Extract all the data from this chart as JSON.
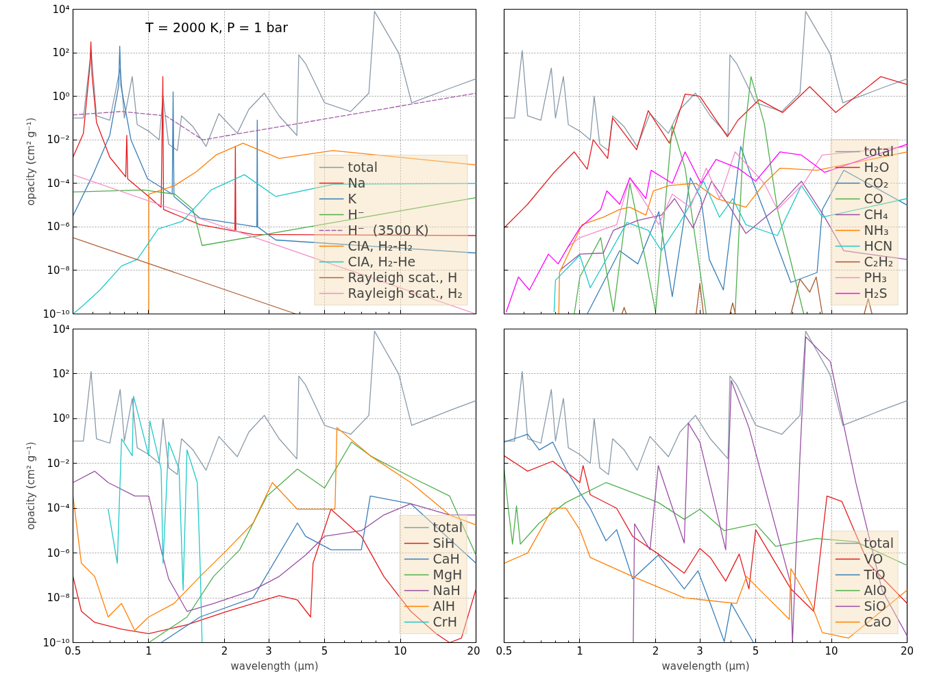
{
  "chart_data": [
    {
      "type": "line",
      "log": "xy",
      "grid": true,
      "legend": "bottom right",
      "tick_labels": "y",
      "ylabel": "opacity (cm² g⁻¹)",
      "annotations": [
        "T = 2000 K, P = 1 bar"
      ],
      "xlim": [
        0.5,
        20
      ],
      "ylim": [
        1e-10,
        10000
      ],
      "xticks": [
        {
          "value": 0.5,
          "label": null
        },
        {
          "value": 1,
          "label": null
        },
        {
          "value": 2,
          "label": null
        },
        {
          "value": 3,
          "label": null
        },
        {
          "value": 5,
          "label": null
        },
        {
          "value": 10,
          "label": null
        },
        {
          "value": 20,
          "label": null
        }
      ],
      "yticks": [
        {
          "value": 1e-10,
          "label": "10⁻¹⁰"
        },
        {
          "value": 1e-08,
          "label": "10⁻⁸"
        },
        {
          "value": 1e-06,
          "label": "10⁻⁶"
        },
        {
          "value": 0.0001,
          "label": "10⁻⁴"
        },
        {
          "value": 0.01,
          "label": "10⁻²"
        },
        {
          "value": 1,
          "label": "10⁰"
        },
        {
          "value": 100,
          "label": "10²"
        },
        {
          "value": 10000,
          "label": "10⁴"
        }
      ],
      "series": [
        {
          "name": "total",
          "color": "#8899a8",
          "x": [
            0.5,
            0.55,
            0.59,
            0.62,
            0.7,
            0.77,
            0.8,
            0.86,
            0.9,
            1.0,
            1.1,
            1.14,
            1.2,
            1.3,
            1.35,
            1.5,
            1.69,
            1.9,
            2.25,
            2.5,
            2.88,
            3.3,
            3.88,
            3.95,
            4.2,
            4.5,
            5.0,
            6.35,
            7.5,
            7.9,
            9.85,
            11.1,
            13,
            16,
            20
          ],
          "values": [
            0.1,
            0.1,
            126.0,
            0.126,
            0.08,
            20,
            0.1,
            8,
            0.05,
            0.025,
            0.01,
            1,
            0.0063,
            0.0032,
            0.126,
            0.04,
            0.005,
            0.16,
            0.02,
            0.25,
            1.4,
            0.126,
            0.016,
            80,
            32,
            6.3,
            0.5,
            0.2,
            1.4,
            8000.0,
            100,
            0.5,
            1,
            2.5,
            6.3
          ]
        },
        {
          "name": "Na",
          "color": "#e41a1c",
          "x": [
            0.5,
            0.55,
            0.585,
            0.589,
            0.595,
            0.62,
            0.7,
            0.81,
            0.818,
            0.825,
            1.0,
            1.12,
            1.138,
            1.145,
            1.6,
            2.2,
            2.21,
            2.22,
            2.6,
            20
          ],
          "values": [
            0.0016,
            0.02,
            32,
            316,
            10,
            0.063,
            0.0016,
            0.0002,
            0.016,
            0.00016,
            2.5e-05,
            8e-06,
            8,
            6.3e-06,
            1.26e-06,
            6.3e-07,
            0.005,
            6.3e-07,
            4.5e-07,
            4e-07
          ]
        },
        {
          "name": "K",
          "color": "#377eb8",
          "x": [
            0.5,
            0.6,
            0.7,
            0.76,
            0.767,
            0.775,
            0.85,
            0.99,
            1.24,
            1.25,
            1.26,
            1.6,
            2.69,
            2.7,
            2.71,
            3.2,
            20
          ],
          "values": [
            3.2e-06,
            0.00025,
            0.016,
            3.2,
            200,
            3.2,
            0.01,
            0.00016,
            3.2e-05,
            1.6,
            2.5e-05,
            2.5e-06,
            1e-06,
            0.08,
            1e-06,
            2.5e-07,
            6.3e-08
          ]
        },
        {
          "name": "H⁻",
          "color": "#4daf4a",
          "x": [
            0.5,
            0.95,
            1.27,
            1.5,
            1.63,
            20
          ],
          "values": [
            4e-05,
            5e-05,
            3.2e-05,
            6.3e-06,
            1.4e-07,
            2.2e-05
          ]
        },
        {
          "name": "H⁻  (3500 K)",
          "color": "#a05da8",
          "line_style": "dashed",
          "x": [
            0.5,
            0.78,
            1.17,
            1.64,
            20
          ],
          "values": [
            0.14,
            0.2,
            0.126,
            0.01,
            1.4
          ]
        },
        {
          "name": "CIA, H₂-H₂",
          "color": "#ff7f00",
          "x": [
            1.0,
            1.001,
            1.27,
            1.55,
            1.85,
            2.37,
            3.3,
            5.4,
            20
          ],
          "values": [
            1e-10,
            3.2e-05,
            8e-05,
            0.00035,
            0.002,
            0.007,
            0.0014,
            0.0032,
            0.0007
          ]
        },
        {
          "name": "CIA, H₂-He",
          "color": "#1fc8c8",
          "x": [
            0.5,
            0.55,
            0.64,
            0.78,
            0.9,
            1.09,
            1.36,
            1.77,
            2.4,
            3.2,
            5.4,
            20
          ],
          "values": [
            1e-10,
            2.5e-10,
            1.26e-09,
            1.6e-08,
            3.2e-08,
            8e-07,
            1.8e-06,
            5e-05,
            0.00025,
            2.5e-05,
            9e-05,
            0.0001
          ]
        },
        {
          "name": "Rayleigh scat., H",
          "color": "#b0653a",
          "x": [
            0.5,
            3.85
          ],
          "values": [
            3.2e-07,
            1e-10
          ]
        },
        {
          "name": "Rayleigh scat., H₂",
          "color": "#f58cc8",
          "x": [
            0.5,
            20
          ],
          "values": [
            0.00025,
            1e-10
          ]
        }
      ]
    },
    {
      "type": "line",
      "log": "xy",
      "grid": true,
      "legend": "bottom right",
      "tick_labels": false,
      "xlim": [
        0.5,
        20
      ],
      "ylim": [
        1e-10,
        10000
      ],
      "xticks": [
        {
          "value": 0.5,
          "label": null
        },
        {
          "value": 1,
          "label": null
        },
        {
          "value": 2,
          "label": null
        },
        {
          "value": 3,
          "label": null
        },
        {
          "value": 5,
          "label": null
        },
        {
          "value": 10,
          "label": null
        },
        {
          "value": 20,
          "label": null
        }
      ],
      "yticks": [
        {
          "value": 1e-10,
          "label": null
        },
        {
          "value": 1e-08,
          "label": null
        },
        {
          "value": 1e-06,
          "label": null
        },
        {
          "value": 0.0001,
          "label": null
        },
        {
          "value": 0.01,
          "label": null
        },
        {
          "value": 1,
          "label": null
        },
        {
          "value": 100,
          "label": null
        },
        {
          "value": 10000,
          "label": null
        }
      ],
      "series": [
        {
          "name": "total",
          "color": "#8899a8",
          "x": [
            0.5,
            0.55,
            0.59,
            0.62,
            0.7,
            0.77,
            0.8,
            0.86,
            0.9,
            1.0,
            1.1,
            1.14,
            1.2,
            1.3,
            1.35,
            1.5,
            1.69,
            1.9,
            2.25,
            2.5,
            2.88,
            3.3,
            3.88,
            3.95,
            4.2,
            4.5,
            5.0,
            6.35,
            7.5,
            7.9,
            9.85,
            11.1,
            13,
            16,
            20
          ],
          "values": [
            0.1,
            0.1,
            126.0,
            0.126,
            0.08,
            20,
            0.1,
            8,
            0.05,
            0.025,
            0.01,
            1,
            0.0063,
            0.0032,
            0.126,
            0.04,
            0.005,
            0.16,
            0.02,
            0.25,
            1.4,
            0.126,
            0.016,
            80,
            32,
            6.3,
            0.5,
            0.2,
            1.4,
            8000.0,
            100,
            0.5,
            1,
            2.5,
            6.3
          ]
        },
        {
          "name": "H₂O",
          "color": "#e41a1c",
          "x": [
            0.5,
            0.62,
            0.79,
            0.95,
            1.07,
            1.13,
            1.29,
            1.35,
            1.68,
            1.87,
            2.27,
            2.62,
            3.0,
            3.86,
            4.25,
            5.16,
            6.4,
            8.2,
            10.4,
            15.7,
            20
          ],
          "values": [
            9e-07,
            1.1e-05,
            0.00032,
            0.0028,
            0.00045,
            0.01,
            0.0014,
            0.1,
            0.0035,
            0.22,
            0.007,
            1.26,
            1,
            0.014,
            0.08,
            0.7,
            0.18,
            2.8,
            0.18,
            8,
            3.5
          ]
        },
        {
          "name": "CO₂",
          "color": "#377eb8",
          "x": [
            1.07,
            1.44,
            1.7,
            2.06,
            2.33,
            2.75,
            3.03,
            3.27,
            3.72,
            4.36,
            4.9,
            5.67,
            6.9,
            8.77,
            9.2,
            11.2,
            20
          ],
          "values": [
            1e-10,
            8e-08,
            2e-08,
            5e-06,
            6.3e-10,
            0.00018,
            2e-05,
            3.2e-08,
            1.26e-09,
            0.005,
            0.0001,
            1.26e-06,
            2.8e-09,
            8e-09,
            6.3e-06,
            0.0004,
            1e-05
          ]
        },
        {
          "name": "CO",
          "color": "#4daf4a",
          "x": [
            0.95,
            1.0,
            1.21,
            1.36,
            1.58,
            1.83,
            2.0,
            2.33,
            2.62,
            3.18,
            3.6,
            4.14,
            4.46,
            4.79,
            5.41,
            6.1,
            6.9,
            7.76
          ],
          "values": [
            1e-10,
            5e-09,
            3.2e-07,
            1.26e-10,
            0.0001,
            2.5e-08,
            1.26e-10,
            0.045,
            0.0005,
            1e-10,
            null,
            1e-10,
            0.0063,
            8,
            0.056,
            6.3e-06,
            2.5e-08,
            1e-10
          ]
        },
        {
          "name": "CH₄",
          "color": "#984ea3",
          "x": [
            0.84,
            1.0,
            1.24,
            1.36,
            1.7,
            2.11,
            2.38,
            2.82,
            3.34,
            3.95,
            4.57,
            6.1,
            7.6,
            9.4,
            11.2,
            20
          ],
          "values": [
            1.1e-08,
            5.6e-08,
            6.3e-08,
            7e-07,
            2e-06,
            3.5e-06,
            2e-05,
            9e-07,
            0.000126,
            8e-06,
            5e-07,
            8e-06,
            0.000126,
            2.8e-06,
            8e-08,
            3.2e-08
          ]
        },
        {
          "name": "NH₃",
          "color": "#ff7f00",
          "x": [
            0.825,
            0.83,
            1.02,
            1.24,
            1.44,
            1.58,
            1.83,
            1.96,
            2.27,
            2.89,
            3.5,
            4.57,
            5.41,
            6.25,
            8.77,
            20
          ],
          "values": [
            1e-10,
            8e-09,
            1.26e-06,
            2.8e-06,
            6.3e-06,
            8e-06,
            3.5e-06,
            4.5e-05,
            8e-05,
            0.0001,
            2e-05,
            8e-06,
            0.0001,
            0.0005,
            0.0004,
            0.0028
          ]
        },
        {
          "name": "HCN",
          "color": "#1fc8c8",
          "x": [
            0.79,
            0.8,
            1.0,
            1.1,
            1.54,
            1.87,
            2.11,
            2.5,
            3.1,
            3.59,
            4.05,
            4.57,
            6.1,
            7.6,
            9.2,
            20
          ],
          "values": [
            1.26e-10,
            3.5e-09,
            5e-08,
            1.6e-09,
            1.6e-06,
            7e-07,
            8e-08,
            1.6e-06,
            0.000126,
            2.8e-06,
            2e-05,
            1.26e-06,
            4e-07,
            8e-05,
            2.8e-06,
            2e-05
          ]
        },
        {
          "name": "C₂H₂",
          "color": "#a65628",
          "x": [
            1.47,
            1.5,
            1.53,
            2.0,
            2.9,
            3.0,
            3.1,
            3.5,
            3.95,
            4.05,
            4.15,
            5.0,
            6.9,
            7.5,
            8.2,
            8.7,
            9.2,
            11,
            13.5,
            14,
            14.5
          ],
          "values": [
            1e-10,
            2e-10,
            1e-10,
            null,
            1e-10,
            2.5e-09,
            1e-10,
            null,
            1e-10,
            3.2e-10,
            1e-10,
            null,
            1e-10,
            4e-09,
            1e-09,
            5e-09,
            1e-10,
            null,
            1e-10,
            5e-10,
            1e-10
          ]
        },
        {
          "name": "PH₃",
          "color": "#f58cc8",
          "x": [
            0.9,
            1.0,
            1.4,
            1.58,
            2.06,
            2.33,
            2.75,
            3.18,
            3.59,
            4.14,
            5.41,
            6.1,
            7.76,
            9.2,
            20
          ],
          "values": [
            1.26e-07,
            3.2e-07,
            1.26e-06,
            0.00018,
            1.26e-06,
            3.2e-05,
            8e-06,
            0.0005,
            2e-05,
            0.0028,
            0.0001,
            6.3e-06,
            0.0001,
            0.002,
            0.005
          ]
        },
        {
          "name": "H₂S",
          "color": "#ff00ff",
          "x": [
            0.51,
            0.57,
            0.63,
            0.75,
            0.82,
            0.9,
            1.0,
            1.21,
            1.28,
            1.44,
            1.58,
            1.83,
            1.92,
            2.33,
            2.62,
            3.03,
            3.48,
            4.25,
            5.0,
            6.25,
            7.6,
            9.4,
            20
          ],
          "values": [
            1.26e-10,
            5e-09,
            1.26e-09,
            5.6e-08,
            2e-08,
            1.26e-07,
            9e-07,
            6.3e-06,
            4.5e-05,
            1.1e-05,
            0.00018,
            2e-05,
            0.0004,
            0.0001,
            0.0028,
            0.0001,
            0.00126,
            0.0005,
            0.000126,
            0.0028,
            0.002,
            0.00032,
            0.0063
          ]
        }
      ]
    },
    {
      "type": "line",
      "log": "xy",
      "grid": true,
      "legend": "bottom right",
      "xlabel": "wavelength (μm)",
      "ylabel": "opacity (cm² g⁻¹)",
      "xlim": [
        0.5,
        20
      ],
      "ylim": [
        1e-10,
        10000
      ],
      "xticks": [
        0.5,
        1,
        2,
        3,
        5,
        10,
        20
      ],
      "yticks": [
        {
          "value": 1e-10,
          "label": "10⁻¹⁰"
        },
        {
          "value": 1e-08,
          "label": "10⁻⁸"
        },
        {
          "value": 1e-06,
          "label": "10⁻⁶"
        },
        {
          "value": 0.0001,
          "label": "10⁻⁴"
        },
        {
          "value": 0.01,
          "label": "10⁻²"
        },
        {
          "value": 1,
          "label": "10⁰"
        },
        {
          "value": 100,
          "label": "10²"
        },
        {
          "value": 10000,
          "label": "10⁴"
        }
      ],
      "series": [
        {
          "name": "total",
          "color": "#8899a8",
          "x": [
            0.5,
            0.55,
            0.59,
            0.62,
            0.7,
            0.77,
            0.8,
            0.86,
            0.9,
            1.0,
            1.1,
            1.14,
            1.2,
            1.3,
            1.35,
            1.5,
            1.69,
            1.9,
            2.25,
            2.5,
            2.88,
            3.3,
            3.88,
            3.95,
            4.2,
            4.5,
            5.0,
            6.35,
            7.5,
            7.9,
            9.85,
            11.1,
            13,
            16,
            20
          ],
          "values": [
            0.1,
            0.1,
            126.0,
            0.126,
            0.08,
            20,
            0.1,
            8,
            0.05,
            0.025,
            0.01,
            1,
            0.0063,
            0.0032,
            0.126,
            0.04,
            0.005,
            0.16,
            0.02,
            0.25,
            1.4,
            0.126,
            0.016,
            80,
            32,
            6.3,
            0.5,
            0.2,
            1.4,
            8000.0,
            100,
            0.5,
            1,
            2.5,
            6.3
          ]
        },
        {
          "name": "SiH",
          "color": "#e41a1c",
          "x": [
            0.5,
            0.54,
            0.61,
            0.78,
            1.0,
            1.42,
            2.05,
            2.6,
            3.3,
            3.9,
            4.4,
            4.5,
            5.3,
            7.0,
            8.6,
            11,
            13.9,
            15.7,
            17.5,
            20
          ],
          "values": [
            9e-08,
            2.5e-09,
            8e-10,
            4e-10,
            2.5e-10,
            6.3e-10,
            2.5e-09,
            5.6e-09,
            1.26e-08,
            8e-09,
            1.4e-09,
            3.5e-07,
            9e-05,
            5.6e-06,
            9e-08,
            2.5e-09,
            2.5e-10,
            1e-10,
            1.6e-10,
            2.5e-08
          ]
        },
        {
          "name": "CaH",
          "color": "#377eb8",
          "x": [
            1.12,
            1.6,
            2.6,
            3.9,
            4.2,
            5.3,
            7.0,
            7.6,
            11,
            20
          ],
          "values": [
            1e-10,
            1.4e-09,
            1e-08,
            2.2e-05,
            5.6e-06,
            1.4e-06,
            1.4e-06,
            0.00035,
            0.00016,
            3.5e-07
          ]
        },
        {
          "name": "MgH",
          "color": "#4daf4a",
          "x": [
            1.0,
            1.42,
            1.81,
            2.3,
            2.95,
            3.9,
            5.0,
            6.4,
            7.6,
            11,
            15.7,
            20
          ],
          "values": [
            1e-10,
            1.4e-09,
            9e-08,
            1.4e-06,
            0.00035,
            0.0056,
            0.0008,
            0.09,
            0.022,
            0.0025,
            0.00035,
            8e-07
          ]
        },
        {
          "name": "NaH",
          "color": "#984ea3",
          "x": [
            0.5,
            0.61,
            0.69,
            0.88,
            1.0,
            1.12,
            1.2,
            1.42,
            1.81,
            2.6,
            3.3,
            4.2,
            5.0,
            7.0,
            8.6,
            11,
            15.7,
            20
          ],
          "values": [
            0.0014,
            0.0045,
            0.0014,
            0.00035,
            0.00035,
            1.4e-06,
            7e-08,
            2.5e-09,
            5.6e-09,
            2.2e-08,
            9e-08,
            8e-07,
            5.6e-06,
            1e-05,
            5e-05,
            0.00016,
            5e-05,
            5e-05
          ]
        },
        {
          "name": "AlH",
          "color": "#ff7f00",
          "x": [
            0.5,
            0.54,
            0.61,
            0.69,
            0.78,
            0.88,
            1.0,
            1.26,
            1.6,
            2.05,
            2.6,
            3.1,
            3.9,
            5.5,
            5.6,
            7.6,
            11,
            15.7,
            20
          ],
          "values": [
            0.00035,
            3.5e-07,
            9e-08,
            1.4e-09,
            5.6e-09,
            3.5e-10,
            1.4e-09,
            5.6e-09,
            9e-08,
            1.4e-06,
            2.2e-05,
            0.0014,
            9e-05,
            9e-05,
            0.4,
            0.022,
            0.0014,
            5e-05,
            1.8e-05
          ]
        },
        {
          "name": "CrH",
          "color": "#1fc8c8",
          "x": [
            0.69,
            0.75,
            0.78,
            0.86,
            0.87,
            1.0,
            1.01,
            1.12,
            1.14,
            1.2,
            1.32,
            1.37,
            1.42,
            1.56,
            1.6,
            1.63
          ],
          "values": [
            9e-05,
            3.5e-07,
            0.126,
            0.022,
            10,
            0.022,
            0.8,
            0.0056,
            3.5e-07,
            0.09,
            0.0056,
            2.2e-08,
            0.04,
            0.0014,
            3.5e-07,
            1e-10
          ]
        }
      ]
    },
    {
      "type": "line",
      "log": "xy",
      "grid": true,
      "legend": "bottom right",
      "tick_labels": "x",
      "xlabel": "wavelength (μm)",
      "xlim": [
        0.5,
        20
      ],
      "ylim": [
        1e-10,
        10000
      ],
      "xticks": [
        0.5,
        1,
        2,
        3,
        5,
        10,
        20
      ],
      "yticks": [
        {
          "value": 1e-10,
          "label": null
        },
        {
          "value": 1e-08,
          "label": null
        },
        {
          "value": 1e-06,
          "label": null
        },
        {
          "value": 0.0001,
          "label": null
        },
        {
          "value": 0.01,
          "label": null
        },
        {
          "value": 1,
          "label": null
        },
        {
          "value": 100,
          "label": null
        },
        {
          "value": 10000,
          "label": null
        }
      ],
      "series": [
        {
          "name": "total",
          "color": "#8899a8",
          "x": [
            0.5,
            0.55,
            0.59,
            0.62,
            0.7,
            0.77,
            0.8,
            0.86,
            0.9,
            1.0,
            1.1,
            1.14,
            1.2,
            1.3,
            1.35,
            1.5,
            1.69,
            1.9,
            2.25,
            2.5,
            2.88,
            3.3,
            3.88,
            3.95,
            4.2,
            4.5,
            5.0,
            6.35,
            7.5,
            7.9,
            9.85,
            11.1,
            13,
            16,
            20
          ],
          "values": [
            0.1,
            0.1,
            126.0,
            0.126,
            0.08,
            20,
            0.1,
            8,
            0.05,
            0.025,
            0.01,
            1,
            0.0063,
            0.0032,
            0.126,
            0.04,
            0.005,
            0.16,
            0.02,
            0.25,
            1.4,
            0.126,
            0.016,
            80,
            32,
            6.3,
            0.5,
            0.2,
            1.4,
            8000.0,
            100,
            0.5,
            1,
            2.5,
            6.3
          ]
        },
        {
          "name": "VO",
          "color": "#e41a1c",
          "x": [
            0.5,
            0.62,
            0.78,
            1.0,
            1.03,
            1.1,
            1.4,
            1.62,
            2.05,
            2.6,
            3.0,
            3.3,
            3.8,
            4.3,
            4.7,
            5.0,
            6.9,
            8.5,
            9.6,
            11,
            14,
            20
          ],
          "values": [
            0.022,
            0.0045,
            0.0126,
            0.0014,
            0.008,
            0.0004,
            0.0001,
            5.6e-06,
            9e-07,
            1.26e-07,
            1.6e-06,
            6.3e-07,
            5.6e-08,
            9e-07,
            2.5e-08,
            1.1e-05,
            2.5e-08,
            2.5e-09,
            0.00035,
            0.0002,
            3.5e-07,
            5.6e-09
          ]
        },
        {
          "name": "TiO",
          "color": "#377eb8",
          "x": [
            0.5,
            0.62,
            0.69,
            0.78,
            0.88,
            1.0,
            1.1,
            1.27,
            1.4,
            1.62,
            2.05,
            2.6,
            2.95,
            3.3,
            3.75,
            4.0,
            4.9
          ],
          "values": [
            0.09,
            0.2,
            0.04,
            0.09,
            0.0056,
            0.0005,
            0.0001,
            3.5e-06,
            1.1e-05,
            7e-08,
            8e-07,
            2.5e-08,
            1.6e-07,
            5.6e-09,
            1.1e-10,
            5.6e-09,
            1e-10
          ]
        },
        {
          "name": "AlO",
          "color": "#4daf4a",
          "x": [
            0.5,
            0.52,
            0.54,
            0.56,
            0.58,
            0.69,
            0.88,
            1.27,
            1.62,
            2.05,
            2.6,
            3.0,
            3.75,
            5.0,
            6.0,
            8.7,
            12.5,
            20
          ],
          "values": [
            0.0056,
            9e-05,
            2.5e-06,
            0.000126,
            2.5e-06,
            2.2e-05,
            0.00018,
            0.0014,
            0.0005,
            0.00018,
            3.2e-05,
            9e-05,
            1e-05,
            2e-05,
            2e-06,
            4.5e-06,
            3.2e-06,
            2.8e-07
          ]
        },
        {
          "name": "SiO",
          "color": "#984ea3",
          "x": [
            1.63,
            1.65,
            1.9,
            2.05,
            2.6,
            2.7,
            3.0,
            3.8,
            4.0,
            4.7,
            6.9,
            7.0,
            7.5,
            7.9,
            9.9,
            12.5,
            15.9,
            20
          ],
          "values": [
            1e-10,
            2e-05,
            1.4e-06,
            0.008,
            2.8e-06,
            0.63,
            0.09,
            1.4e-06,
            50,
            0.4,
            4e-08,
            1e-10,
            0.022,
            4500.0,
            350.0,
            0.0014,
            2.2e-08,
            2e-10
          ]
        },
        {
          "name": "CaO",
          "color": "#ff7f00",
          "x": [
            0.5,
            0.62,
            0.78,
            0.88,
            1.0,
            1.1,
            1.62,
            2.6,
            4.2,
            4.6,
            5.2,
            6.8,
            6.9,
            8.3,
            9.2,
            11.7,
            20
          ],
          "values": [
            3.5e-07,
            1e-06,
            0.0001,
            0.0001,
            1.1e-05,
            6.3e-07,
            9e-08,
            1e-08,
            5.6e-09,
            9e-08,
            2.2e-08,
            1.1e-09,
            2e-07,
            5.6e-09,
            2.8e-10,
            1.6e-10,
            2.2e-08
          ]
        }
      ]
    }
  ]
}
